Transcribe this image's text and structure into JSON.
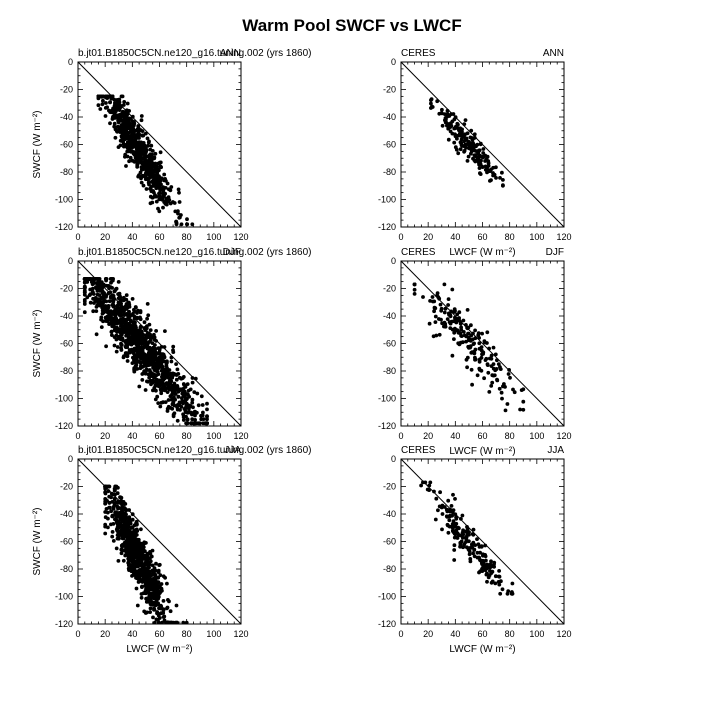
{
  "figure": {
    "title": "Warm Pool SWCF vs LWCF",
    "background": "#ffffff",
    "marker_color": "#000000"
  },
  "chart_data": [
    {
      "type": "scatter",
      "left_label": "b.jt01.B1850C5CN.ne120_g16.tuning.002 (yrs 1860)",
      "right_label": "ANN",
      "xlabel": "",
      "ylabel": "SWCF (W m⁻²)",
      "xlim": [
        0,
        120
      ],
      "ylim": [
        -120,
        0
      ],
      "xticks": [
        0,
        20,
        40,
        60,
        80,
        100,
        120
      ],
      "yticks": [
        0,
        -20,
        -40,
        -60,
        -80,
        -100,
        -120
      ],
      "reference_line": "one-to-one",
      "point_count": 650,
      "seed": 11,
      "trend": {
        "x_mean": 44,
        "x_spread": 13,
        "y_intercept": 8,
        "y_slope": -1.6,
        "y_scatter": 9,
        "x_min": 15,
        "x_max": 85,
        "y_min": -118,
        "y_max": -25
      }
    },
    {
      "type": "scatter",
      "left_label": "CERES",
      "right_label": "ANN",
      "xlabel": "LWCF (W m⁻²)",
      "ylabel": "",
      "xlim": [
        0,
        120
      ],
      "ylim": [
        -120,
        0
      ],
      "xticks": [
        0,
        20,
        40,
        60,
        80,
        100,
        120
      ],
      "yticks": [
        0,
        -20,
        -40,
        -60,
        -80,
        -100,
        -120
      ],
      "reference_line": "one-to-one",
      "point_count": 190,
      "seed": 23,
      "trend": {
        "x_mean": 48,
        "x_spread": 12,
        "y_intercept": -4,
        "y_slope": -1.13,
        "y_scatter": 5,
        "x_min": 22,
        "x_max": 75,
        "y_min": -90,
        "y_max": -27
      }
    },
    {
      "type": "scatter",
      "left_label": "b.jt01.B1850C5CN.ne120_g16.tuning.002 (yrs 1860)",
      "right_label": "DJF",
      "xlabel": "",
      "ylabel": "SWCF (W m⁻²)",
      "xlim": [
        0,
        120
      ],
      "ylim": [
        -120,
        0
      ],
      "xticks": [
        0,
        20,
        40,
        60,
        80,
        100,
        120
      ],
      "yticks": [
        0,
        -20,
        -40,
        -60,
        -80,
        -100,
        -120
      ],
      "reference_line": "one-to-one",
      "point_count": 1100,
      "seed": 37,
      "trend": {
        "x_mean": 45,
        "x_spread": 22,
        "y_intercept": -4,
        "y_slope": -1.25,
        "y_scatter": 11,
        "x_min": 5,
        "x_max": 95,
        "y_min": -118,
        "y_max": -13
      }
    },
    {
      "type": "scatter",
      "left_label": "CERES",
      "right_label": "DJF",
      "xlabel": "LWCF (W m⁻²)",
      "ylabel": "",
      "xlim": [
        0,
        120
      ],
      "ylim": [
        -120,
        0
      ],
      "xticks": [
        0,
        20,
        40,
        60,
        80,
        100,
        120
      ],
      "yticks": [
        0,
        -20,
        -40,
        -60,
        -80,
        -100,
        -120
      ],
      "reference_line": "one-to-one",
      "point_count": 200,
      "seed": 53,
      "trend": {
        "x_mean": 50,
        "x_spread": 20,
        "y_intercept": -5,
        "y_slope": -1.08,
        "y_scatter": 10,
        "x_min": 10,
        "x_max": 90,
        "y_min": -112,
        "y_max": -17
      }
    },
    {
      "type": "scatter",
      "left_label": "b.jt01.B1850C5CN.ne120_g16.tuning.002 (yrs 1860)",
      "right_label": "JJA",
      "xlabel": "LWCF (W m⁻²)",
      "ylabel": "SWCF (W m⁻²)",
      "xlim": [
        0,
        120
      ],
      "ylim": [
        -120,
        0
      ],
      "xticks": [
        0,
        20,
        40,
        60,
        80,
        100,
        120
      ],
      "yticks": [
        0,
        -20,
        -40,
        -60,
        -80,
        -100,
        -120
      ],
      "reference_line": "one-to-one",
      "point_count": 900,
      "seed": 71,
      "trend": {
        "x_mean": 43,
        "x_spread": 11,
        "y_intercept": 14,
        "y_slope": -1.95,
        "y_scatter": 11,
        "x_min": 20,
        "x_max": 80,
        "y_min": -119,
        "y_max": -20
      }
    },
    {
      "type": "scatter",
      "left_label": "CERES",
      "right_label": "JJA",
      "xlabel": "LWCF (W m⁻²)",
      "ylabel": "",
      "xlim": [
        0,
        120
      ],
      "ylim": [
        -120,
        0
      ],
      "xticks": [
        0,
        20,
        40,
        60,
        80,
        100,
        120
      ],
      "yticks": [
        0,
        -20,
        -40,
        -60,
        -80,
        -100,
        -120
      ],
      "reference_line": "one-to-one",
      "point_count": 190,
      "seed": 89,
      "trend": {
        "x_mean": 52,
        "x_spread": 15,
        "y_intercept": -2,
        "y_slope": -1.18,
        "y_scatter": 7,
        "x_min": 10,
        "x_max": 82,
        "y_min": -98,
        "y_max": -17
      }
    }
  ]
}
